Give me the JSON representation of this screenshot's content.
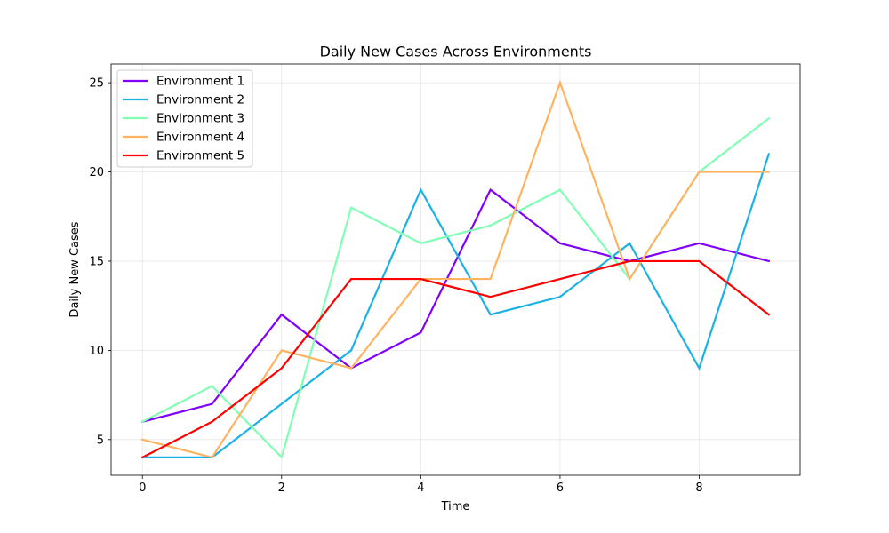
{
  "chart_data": {
    "type": "line",
    "title": "Daily New Cases Across Environments",
    "xlabel": "Time",
    "ylabel": "Daily New Cases",
    "x": [
      0,
      1,
      2,
      3,
      4,
      5,
      6,
      7,
      8,
      9
    ],
    "xlim": [
      -0.45,
      9.45
    ],
    "ylim": [
      3.0,
      26.05
    ],
    "xticks": [
      0,
      2,
      4,
      6,
      8
    ],
    "yticks": [
      5,
      10,
      15,
      20,
      25
    ],
    "grid": true,
    "legend_position": "top-left",
    "series": [
      {
        "name": "Environment 1",
        "color": "#8000ff",
        "values": [
          6,
          7,
          12,
          9,
          11,
          19,
          16,
          15,
          16,
          15
        ]
      },
      {
        "name": "Environment 2",
        "color": "#1ab2e6",
        "values": [
          4,
          4,
          7,
          10,
          19,
          12,
          13,
          16,
          9,
          21
        ]
      },
      {
        "name": "Environment 3",
        "color": "#80ffb4",
        "values": [
          6,
          8,
          4,
          18,
          16,
          17,
          19,
          14,
          20,
          23
        ]
      },
      {
        "name": "Environment 4",
        "color": "#ffb360",
        "values": [
          5,
          4,
          10,
          9,
          14,
          14,
          25,
          14,
          20,
          20
        ]
      },
      {
        "name": "Environment 5",
        "color": "#ff0000",
        "values": [
          4,
          6,
          9,
          14,
          14,
          13,
          14,
          15,
          15,
          12
        ]
      }
    ]
  }
}
